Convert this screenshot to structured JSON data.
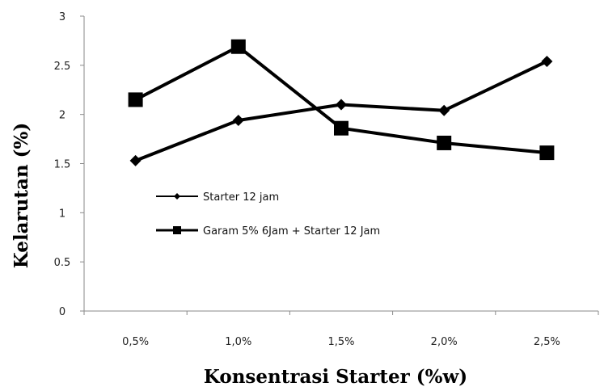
{
  "chart_data": {
    "type": "line",
    "title": "",
    "xlabel": "Konsentrasi Starter (%w)",
    "ylabel": "Kelarutan (%)",
    "categories": [
      "0,5%",
      "1,0%",
      "1,5%",
      "2,0%",
      "2,5%"
    ],
    "ylim": [
      0,
      3
    ],
    "yticks": [
      0,
      0.5,
      1,
      1.5,
      2,
      2.5,
      3
    ],
    "ytick_labels": [
      "0",
      "0.5",
      "1",
      "1.5",
      "2",
      "2.5",
      "3"
    ],
    "grid": false,
    "legend_position": "left-middle",
    "series": [
      {
        "name": "Starter 12 jam",
        "marker": "diamond",
        "color": "#000000",
        "values": [
          1.53,
          1.94,
          2.1,
          2.04,
          2.54
        ]
      },
      {
        "name": "Garam 5% 6Jam + Starter 12 Jam",
        "marker": "square",
        "color": "#000000",
        "values": [
          2.15,
          2.69,
          1.86,
          1.71,
          1.61
        ]
      }
    ]
  }
}
